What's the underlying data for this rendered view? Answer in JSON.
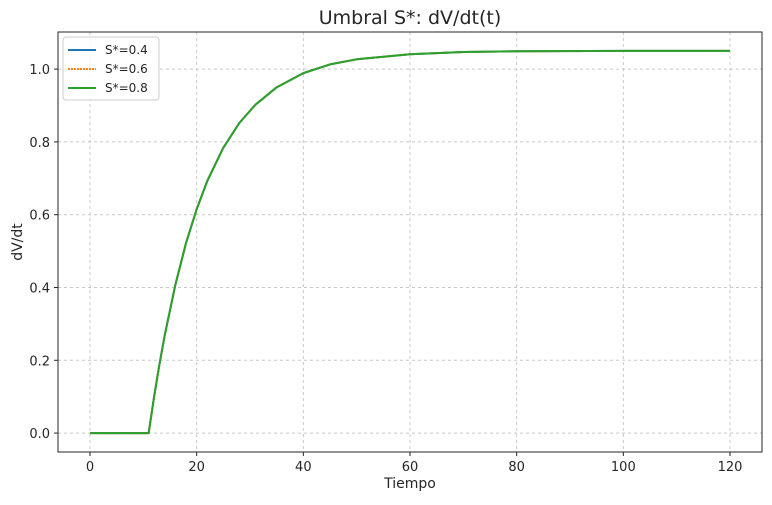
{
  "chart_data": {
    "type": "line",
    "title": "Umbral S*: dV/dt(t)",
    "xlabel": "Tiempo",
    "ylabel": "dV/dt",
    "xlim": [
      -6,
      126
    ],
    "ylim": [
      -0.052,
      1.102
    ],
    "xticks": [
      0,
      20,
      40,
      60,
      80,
      100,
      120
    ],
    "yticks": [
      0.0,
      0.2,
      0.4,
      0.6,
      0.8,
      1.0
    ],
    "grid": true,
    "legend_position": "top-left",
    "x": [
      0,
      11,
      12,
      13,
      14,
      16,
      18,
      20,
      22,
      25,
      28,
      31,
      35,
      40,
      45,
      50,
      60,
      70,
      80,
      100,
      120
    ],
    "series": [
      {
        "name": "S*=0.4",
        "color": "#1f77b4",
        "style": "solid",
        "values": [
          0,
          0,
          0.098,
          0.187,
          0.268,
          0.407,
          0.522,
          0.615,
          0.693,
          0.784,
          0.852,
          0.902,
          0.95,
          0.989,
          1.013,
          1.027,
          1.041,
          1.047,
          1.049,
          1.05,
          1.05
        ]
      },
      {
        "name": "S*=0.6",
        "color": "#ff7f0e",
        "style": "dotted",
        "values": [
          0,
          0,
          0.098,
          0.187,
          0.268,
          0.407,
          0.522,
          0.615,
          0.693,
          0.784,
          0.852,
          0.902,
          0.95,
          0.989,
          1.013,
          1.027,
          1.041,
          1.047,
          1.049,
          1.05,
          1.05
        ]
      },
      {
        "name": "S*=0.8",
        "color": "#2ca02c",
        "style": "solid",
        "values": [
          0,
          0,
          0.098,
          0.187,
          0.268,
          0.407,
          0.522,
          0.615,
          0.693,
          0.784,
          0.852,
          0.902,
          0.95,
          0.989,
          1.013,
          1.027,
          1.041,
          1.047,
          1.049,
          1.05,
          1.05
        ]
      }
    ]
  }
}
